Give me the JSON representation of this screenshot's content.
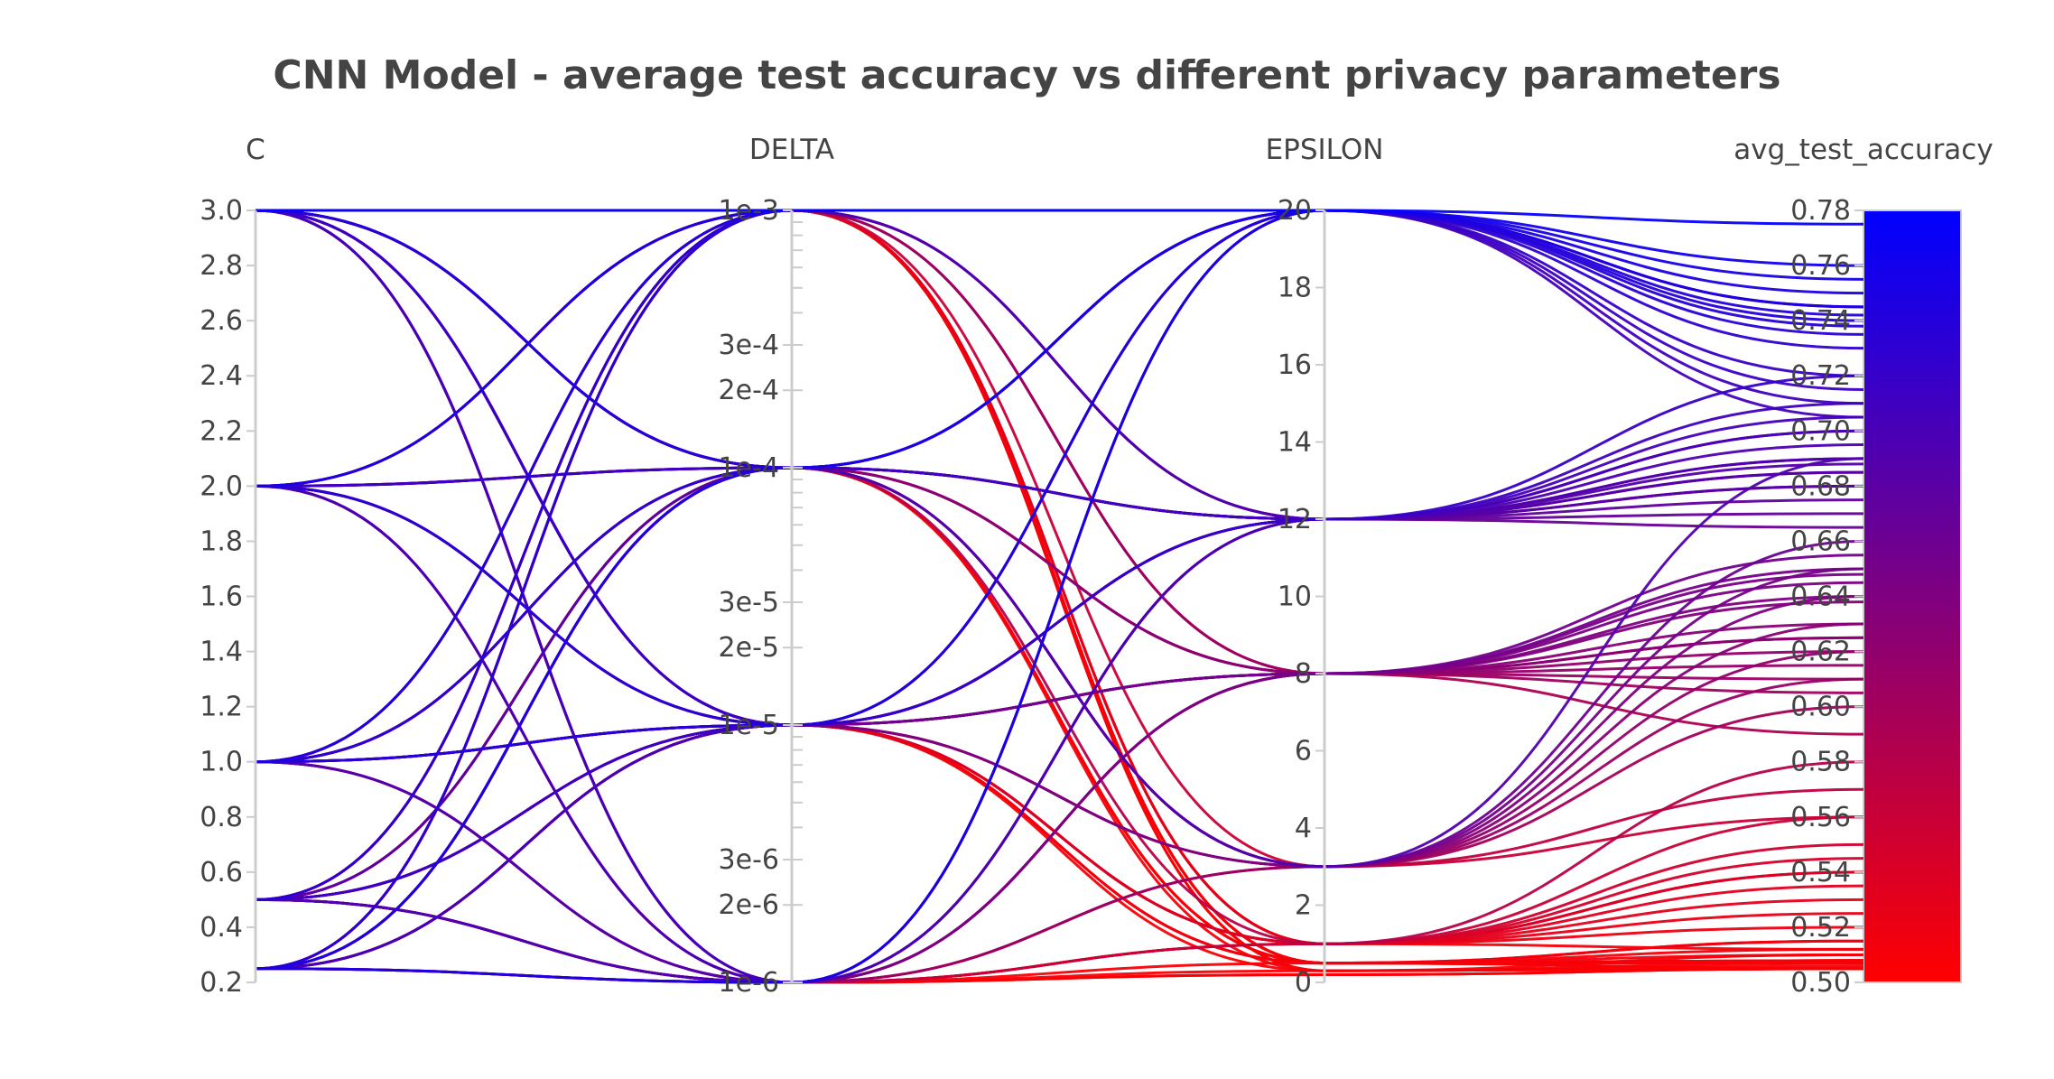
{
  "chart_data": {
    "type": "parallel_coordinates",
    "title": "CNN Model - average test accuracy vs different privacy parameters",
    "dimensions": [
      {
        "name": "C",
        "range": [
          0.2,
          3.0
        ],
        "scale": "linear",
        "tick_values": [
          0.2,
          0.4,
          0.6,
          0.8,
          1.0,
          1.2,
          1.4,
          1.6,
          1.8,
          2.0,
          2.2,
          2.4,
          2.6,
          2.8,
          3.0
        ],
        "tick_labels": [
          "0.2",
          "0.4",
          "0.6",
          "0.8",
          "1.0",
          "1.2",
          "1.4",
          "1.6",
          "1.8",
          "2.0",
          "2.2",
          "2.4",
          "2.6",
          "2.8",
          "3.0"
        ]
      },
      {
        "name": "DELTA",
        "range": [
          1e-06,
          0.001
        ],
        "scale": "log",
        "tick_values": [
          1e-06,
          2e-06,
          3e-06,
          1e-05,
          2e-05,
          3e-05,
          0.0001,
          0.0002,
          0.0003,
          0.001
        ],
        "tick_labels": [
          "1e-6",
          "2e-6",
          "3e-6",
          "1e-5",
          "2e-5",
          "3e-5",
          "1e-4",
          "2e-4",
          "3e-4",
          "1e-3"
        ]
      },
      {
        "name": "EPSILON",
        "range": [
          0,
          20
        ],
        "scale": "linear",
        "tick_values": [
          0,
          2,
          4,
          6,
          8,
          10,
          12,
          14,
          16,
          18,
          20
        ],
        "tick_labels": [
          "0",
          "2",
          "4",
          "6",
          "8",
          "10",
          "12",
          "14",
          "16",
          "18",
          "20"
        ]
      },
      {
        "name": "avg_test_accuracy",
        "range": [
          0.5,
          0.78
        ],
        "scale": "linear",
        "tick_values": [
          0.5,
          0.52,
          0.54,
          0.56,
          0.58,
          0.6,
          0.62,
          0.64,
          0.66,
          0.68,
          0.7,
          0.72,
          0.74,
          0.76,
          0.78
        ],
        "tick_labels": [
          "0.50",
          "0.52",
          "0.54",
          "0.56",
          "0.58",
          "0.60",
          "0.62",
          "0.64",
          "0.66",
          "0.68",
          "0.70",
          "0.72",
          "0.74",
          "0.76",
          "0.78"
        ]
      }
    ],
    "colorscale": {
      "low_color": "#ff0000",
      "high_color": "#0000ff",
      "range": [
        0.5,
        0.78
      ],
      "colorbar_on": "avg_test_accuracy"
    },
    "runs": [
      [
        3.0,
        0.001,
        20,
        0.775
      ],
      [
        3.0,
        0.001,
        0.3,
        0.505
      ],
      [
        3.0,
        0.001,
        0.5,
        0.505
      ],
      [
        3.0,
        0.001,
        1,
        0.512
      ],
      [
        3.0,
        0.0001,
        20,
        0.74
      ],
      [
        3.0,
        0.0001,
        12,
        0.71
      ],
      [
        3.0,
        0.0001,
        3,
        0.69
      ],
      [
        3.0,
        0.0001,
        0.5,
        0.505
      ],
      [
        3.0,
        1e-05,
        20,
        0.72
      ],
      [
        3.0,
        1e-05,
        8,
        0.65
      ],
      [
        3.0,
        1e-05,
        12,
        0.7
      ],
      [
        3.0,
        1e-05,
        1,
        0.525
      ],
      [
        3.0,
        1e-06,
        20,
        0.705
      ],
      [
        3.0,
        1e-06,
        0.2,
        0.505
      ],
      [
        3.0,
        1e-06,
        8,
        0.62
      ],
      [
        2.0,
        0.001,
        20,
        0.76
      ],
      [
        2.0,
        0.001,
        0.5,
        0.508
      ],
      [
        2.0,
        0.001,
        3,
        0.56
      ],
      [
        2.0,
        0.0001,
        12,
        0.688
      ],
      [
        2.0,
        0.0001,
        0.5,
        0.508
      ],
      [
        2.0,
        0.0001,
        20,
        0.715
      ],
      [
        2.0,
        1e-05,
        8,
        0.64
      ],
      [
        2.0,
        1e-05,
        12,
        0.67
      ],
      [
        2.0,
        1e-05,
        1,
        0.54
      ],
      [
        2.0,
        1e-06,
        20,
        0.71
      ],
      [
        2.0,
        1e-06,
        0.3,
        0.507
      ],
      [
        1.0,
        0.001,
        20,
        0.745
      ],
      [
        1.0,
        0.001,
        0.5,
        0.51
      ],
      [
        1.0,
        0.0001,
        12,
        0.685
      ],
      [
        1.0,
        0.0001,
        3,
        0.66
      ],
      [
        1.0,
        0.0001,
        20,
        0.73
      ],
      [
        1.0,
        1e-05,
        8,
        0.655
      ],
      [
        1.0,
        1e-05,
        12,
        0.675
      ],
      [
        1.0,
        1e-05,
        0.5,
        0.515
      ],
      [
        1.0,
        1e-05,
        3,
        0.64
      ],
      [
        1.0,
        1e-06,
        12,
        0.69
      ],
      [
        1.0,
        1e-06,
        8,
        0.63
      ],
      [
        1.0,
        1e-06,
        1,
        0.545
      ],
      [
        0.5,
        0.001,
        20,
        0.735
      ],
      [
        0.5,
        0.001,
        0.5,
        0.507
      ],
      [
        0.5,
        0.001,
        1,
        0.52
      ],
      [
        0.5,
        0.0001,
        12,
        0.68
      ],
      [
        0.5,
        0.0001,
        0.3,
        0.51
      ],
      [
        0.5,
        0.0001,
        3,
        0.62
      ],
      [
        0.5,
        1e-05,
        8,
        0.648
      ],
      [
        0.5,
        1e-05,
        12,
        0.72
      ],
      [
        0.5,
        1e-05,
        0.5,
        0.515
      ],
      [
        0.5,
        1e-05,
        3,
        0.6
      ],
      [
        0.5,
        1e-06,
        3,
        0.61
      ],
      [
        0.5,
        1e-06,
        12,
        0.695
      ],
      [
        0.5,
        1e-06,
        8,
        0.645
      ],
      [
        0.5,
        1e-06,
        0.5,
        0.507
      ],
      [
        0.25,
        0.001,
        20,
        0.745
      ],
      [
        0.25,
        0.001,
        0.3,
        0.505
      ],
      [
        0.25,
        0.001,
        1,
        0.53
      ],
      [
        0.25,
        0.001,
        8,
        0.59
      ],
      [
        0.25,
        0.0001,
        12,
        0.7
      ],
      [
        0.25,
        0.0001,
        3,
        0.65
      ],
      [
        0.25,
        0.0001,
        20,
        0.75
      ],
      [
        0.25,
        0.0001,
        0.5,
        0.508
      ],
      [
        0.25,
        1e-05,
        8,
        0.638
      ],
      [
        0.25,
        1e-05,
        12,
        0.705
      ],
      [
        0.25,
        1e-05,
        1,
        0.535
      ],
      [
        0.25,
        1e-05,
        0.3,
        0.506
      ],
      [
        0.25,
        1e-06,
        8,
        0.625
      ],
      [
        0.25,
        1e-06,
        20,
        0.755
      ],
      [
        0.25,
        1e-06,
        0.2,
        0.505
      ],
      [
        0.25,
        1e-06,
        3,
        0.57
      ],
      [
        3.0,
        0.0001,
        8,
        0.615
      ],
      [
        2.0,
        0.0001,
        8,
        0.61
      ],
      [
        1.0,
        0.001,
        12,
        0.69
      ],
      [
        0.5,
        0.001,
        12,
        0.665
      ],
      [
        3.0,
        1e-06,
        12,
        0.68
      ],
      [
        2.0,
        1e-05,
        20,
        0.738
      ],
      [
        1.0,
        1e-05,
        20,
        0.742
      ],
      [
        0.25,
        0.0001,
        8,
        0.625
      ],
      [
        3.0,
        1e-05,
        0.5,
        0.512
      ],
      [
        2.0,
        1e-06,
        1,
        0.55
      ],
      [
        0.5,
        1e-05,
        1,
        0.54
      ],
      [
        1.0,
        0.0001,
        1,
        0.58
      ],
      [
        3.0,
        0.001,
        12,
        0.685
      ],
      [
        2.0,
        0.001,
        8,
        0.605
      ],
      [
        0.25,
        1e-05,
        3,
        0.63
      ],
      [
        0.5,
        1e-06,
        1,
        0.56
      ]
    ]
  }
}
